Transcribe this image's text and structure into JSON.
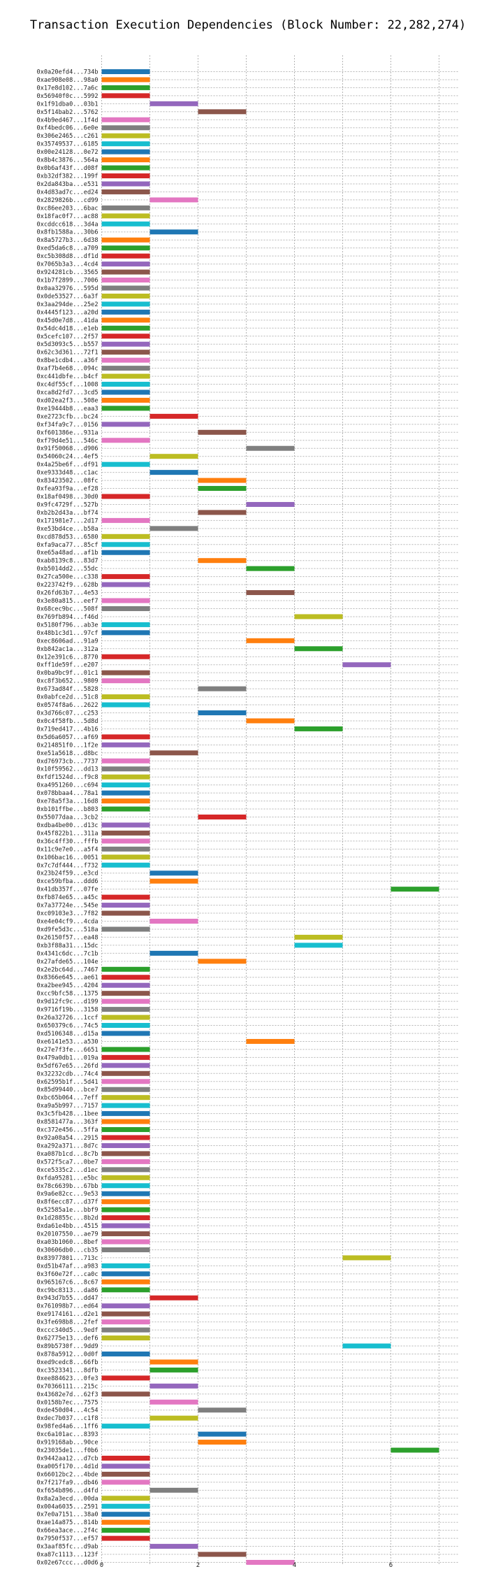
{
  "chart_data": {
    "type": "bar",
    "orientation": "horizontal-gantt",
    "title": "Transaction Execution Dependencies (Block Number: 22,282,274)",
    "xlabel": "",
    "ylabel": "",
    "xlim": [
      0,
      7.4
    ],
    "xticks": [
      0,
      2,
      4,
      6
    ],
    "grid": true,
    "legend": "none",
    "palette": [
      "#1f77b4",
      "#ff7f0e",
      "#2ca02c",
      "#d62728",
      "#9467bd",
      "#8c564b",
      "#e377c2",
      "#7f7f7f",
      "#bcbd22",
      "#17becf"
    ],
    "transactions": [
      {
        "tx": "0x0a20efd4...734b",
        "start": 0
      },
      {
        "tx": "0xae908e08...98a0",
        "start": 0
      },
      {
        "tx": "0x17e8d102...7a6c",
        "start": 0
      },
      {
        "tx": "0x56940f0c...5992",
        "start": 0
      },
      {
        "tx": "0x1f91dba0...03b1",
        "start": 1
      },
      {
        "tx": "0x5f14bab2...5762",
        "start": 2
      },
      {
        "tx": "0x4b9ed467...1f4d",
        "start": 0
      },
      {
        "tx": "0xf4bedc06...6e0e",
        "start": 0
      },
      {
        "tx": "0x306e2465...c261",
        "start": 0
      },
      {
        "tx": "0x35749537...6185",
        "start": 0
      },
      {
        "tx": "0x00e24128...0e72",
        "start": 0
      },
      {
        "tx": "0x8b4c3876...564a",
        "start": 0
      },
      {
        "tx": "0x0b6af43f...d08f",
        "start": 0
      },
      {
        "tx": "0xb32df382...199f",
        "start": 0
      },
      {
        "tx": "0x2da843ba...e531",
        "start": 0
      },
      {
        "tx": "0x4d83ad7c...ed24",
        "start": 0
      },
      {
        "tx": "0x2829826b...cd99",
        "start": 1
      },
      {
        "tx": "0xc86ee203...6bac",
        "start": 0
      },
      {
        "tx": "0x18fac0f7...ac88",
        "start": 0
      },
      {
        "tx": "0xcddcc618...3d4a",
        "start": 0
      },
      {
        "tx": "0x8fb1588a...30b6",
        "start": 1
      },
      {
        "tx": "0x8a5727b3...6d38",
        "start": 0
      },
      {
        "tx": "0xed5da6c8...a709",
        "start": 0
      },
      {
        "tx": "0xc5b308d8...df1d",
        "start": 0
      },
      {
        "tx": "0x7065b3a3...4cd4",
        "start": 0
      },
      {
        "tx": "0x924281cb...3565",
        "start": 0
      },
      {
        "tx": "0x1b7f2899...7006",
        "start": 0
      },
      {
        "tx": "0x0aa32976...595d",
        "start": 0
      },
      {
        "tx": "0x0de53527...6a3f",
        "start": 0
      },
      {
        "tx": "0x3aa294de...25e2",
        "start": 0
      },
      {
        "tx": "0x4445f123...a20d",
        "start": 0
      },
      {
        "tx": "0x45d0e7d8...41da",
        "start": 0
      },
      {
        "tx": "0x54dc4d18...e1eb",
        "start": 0
      },
      {
        "tx": "0x5cefc107...2f57",
        "start": 0
      },
      {
        "tx": "0x5d3093c5...b557",
        "start": 0
      },
      {
        "tx": "0x62c3d361...72f1",
        "start": 0
      },
      {
        "tx": "0x8be1cdb4...a36f",
        "start": 0
      },
      {
        "tx": "0xaf7b4e68...094c",
        "start": 0
      },
      {
        "tx": "0xc441dbfe...b4cf",
        "start": 0
      },
      {
        "tx": "0xc4df55cf...1008",
        "start": 0
      },
      {
        "tx": "0xca8d2fd7...3cd5",
        "start": 0
      },
      {
        "tx": "0xd02ea2f3...508e",
        "start": 0
      },
      {
        "tx": "0xe19444b8...eaa3",
        "start": 0
      },
      {
        "tx": "0xe2723cfb...bc24",
        "start": 1
      },
      {
        "tx": "0xf34fa9c7...0156",
        "start": 0
      },
      {
        "tx": "0xf601386e...931a",
        "start": 2
      },
      {
        "tx": "0xf79d4e51...546c",
        "start": 0
      },
      {
        "tx": "0x91f50068...d906",
        "start": 3
      },
      {
        "tx": "0x54060c24...4ef5",
        "start": 1
      },
      {
        "tx": "0x4a25be6f...df91",
        "start": 0
      },
      {
        "tx": "0xe9333d48...c1ac",
        "start": 1
      },
      {
        "tx": "0x83423502...08fc",
        "start": 2
      },
      {
        "tx": "0xfea93f9a...ef28",
        "start": 2
      },
      {
        "tx": "0x18af0498...30d0",
        "start": 0
      },
      {
        "tx": "0x9fc4729f...527b",
        "start": 3
      },
      {
        "tx": "0xb2b2d43a...bf74",
        "start": 2
      },
      {
        "tx": "0x171981e7...2d17",
        "start": 0
      },
      {
        "tx": "0xe53bd4ce...b58a",
        "start": 1
      },
      {
        "tx": "0xcd878d53...6580",
        "start": 0
      },
      {
        "tx": "0xfa9aca77...85cf",
        "start": 0
      },
      {
        "tx": "0xe65a48ad...af1b",
        "start": 0
      },
      {
        "tx": "0xab8139c8...83d7",
        "start": 2
      },
      {
        "tx": "0xb5014dd2...55dc",
        "start": 3
      },
      {
        "tx": "0x27ca500e...c338",
        "start": 0
      },
      {
        "tx": "0x223742f9...628b",
        "start": 0
      },
      {
        "tx": "0x26fd63b7...4e53",
        "start": 3
      },
      {
        "tx": "0x3e80a815...eef7",
        "start": 0
      },
      {
        "tx": "0x68cec9bc...508f",
        "start": 0
      },
      {
        "tx": "0x769fb894...f46d",
        "start": 4
      },
      {
        "tx": "0x5180f796...ab3e",
        "start": 0
      },
      {
        "tx": "0x48b1c3d1...97cf",
        "start": 0
      },
      {
        "tx": "0xec8606ad...91a9",
        "start": 3
      },
      {
        "tx": "0xb842ac1a...312a",
        "start": 4
      },
      {
        "tx": "0x12e391c6...8770",
        "start": 0
      },
      {
        "tx": "0xff1de59f...e207",
        "start": 5
      },
      {
        "tx": "0x0ba9bc9f...01c1",
        "start": 0
      },
      {
        "tx": "0xc8f3b652...9809",
        "start": 0
      },
      {
        "tx": "0x673ad84f...5828",
        "start": 2
      },
      {
        "tx": "0x0abfce2d...51c8",
        "start": 0
      },
      {
        "tx": "0x0574f8a6...2622",
        "start": 0
      },
      {
        "tx": "0x3d766c07...c253",
        "start": 2
      },
      {
        "tx": "0x0c4f58fb...5d8d",
        "start": 3
      },
      {
        "tx": "0x719ed417...4b16",
        "start": 4
      },
      {
        "tx": "0x5d6a6057...af69",
        "start": 0
      },
      {
        "tx": "0x214851f0...1f2e",
        "start": 0
      },
      {
        "tx": "0xe51a5618...d8bc",
        "start": 1
      },
      {
        "tx": "0xd76973cb...7737",
        "start": 0
      },
      {
        "tx": "0x10f59562...dd13",
        "start": 0
      },
      {
        "tx": "0xfdf1524d...f9c8",
        "start": 0
      },
      {
        "tx": "0xa4951260...c694",
        "start": 0
      },
      {
        "tx": "0x078bbaa4...78a1",
        "start": 0
      },
      {
        "tx": "0xe78a5f3a...16d8",
        "start": 0
      },
      {
        "tx": "0xb101ffbe...b803",
        "start": 0
      },
      {
        "tx": "0x55077daa...3cb2",
        "start": 2
      },
      {
        "tx": "0xdba4be00...d13c",
        "start": 0
      },
      {
        "tx": "0x45f822b1...311a",
        "start": 0
      },
      {
        "tx": "0x36c4ff30...fffb",
        "start": 0
      },
      {
        "tx": "0x11c9e7e0...a5f4",
        "start": 0
      },
      {
        "tx": "0x106bac16...0051",
        "start": 0
      },
      {
        "tx": "0x7c7df444...f732",
        "start": 0
      },
      {
        "tx": "0x23b24f59...e3cd",
        "start": 1
      },
      {
        "tx": "0xce59bfba...ddd6",
        "start": 1
      },
      {
        "tx": "0x41db357f...07fe",
        "start": 6
      },
      {
        "tx": "0xfb874e65...a45c",
        "start": 0
      },
      {
        "tx": "0x7a37724e...545e",
        "start": 0
      },
      {
        "tx": "0xc09103e3...7f82",
        "start": 0
      },
      {
        "tx": "0xe4e04cf9...4cda",
        "start": 1
      },
      {
        "tx": "0xd9fe5d3c...518a",
        "start": 0
      },
      {
        "tx": "0x26150f57...ea48",
        "start": 4
      },
      {
        "tx": "0xb3f88a31...15dc",
        "start": 4
      },
      {
        "tx": "0x4341c6dc...7c1b",
        "start": 1
      },
      {
        "tx": "0x27afde65...104e",
        "start": 2
      },
      {
        "tx": "0x2e2bc64d...7467",
        "start": 0
      },
      {
        "tx": "0x8366e645...ae61",
        "start": 0
      },
      {
        "tx": "0xa2bee945...4204",
        "start": 0
      },
      {
        "tx": "0xcc9bfc58...1375",
        "start": 0
      },
      {
        "tx": "0x9d12fc9c...d199",
        "start": 0
      },
      {
        "tx": "0x9716f19b...3158",
        "start": 0
      },
      {
        "tx": "0x26a32726...1ccf",
        "start": 0
      },
      {
        "tx": "0x650379c6...74c5",
        "start": 0
      },
      {
        "tx": "0xd5106348...d15a",
        "start": 0
      },
      {
        "tx": "0xe6141e53...a530",
        "start": 3
      },
      {
        "tx": "0x27e7f3fe...6651",
        "start": 0
      },
      {
        "tx": "0x479a0db1...019a",
        "start": 0
      },
      {
        "tx": "0x5df67e65...26fd",
        "start": 0
      },
      {
        "tx": "0x32232cdb...74c4",
        "start": 0
      },
      {
        "tx": "0x62595b1f...5d41",
        "start": 0
      },
      {
        "tx": "0x85d99440...bce7",
        "start": 0
      },
      {
        "tx": "0xbc65b064...7eff",
        "start": 0
      },
      {
        "tx": "0xa9a5b997...7157",
        "start": 0
      },
      {
        "tx": "0x3c5fb428...1bee",
        "start": 0
      },
      {
        "tx": "0x8581477a...363f",
        "start": 0
      },
      {
        "tx": "0xc372e456...5ffa",
        "start": 0
      },
      {
        "tx": "0x92a08a54...2915",
        "start": 0
      },
      {
        "tx": "0xa292a371...8d7c",
        "start": 0
      },
      {
        "tx": "0xa087b1cd...8c7b",
        "start": 0
      },
      {
        "tx": "0x572f5ca7...0be7",
        "start": 0
      },
      {
        "tx": "0xce5335c2...d1ec",
        "start": 0
      },
      {
        "tx": "0xfda95281...e5bc",
        "start": 0
      },
      {
        "tx": "0x78c6639b...67bb",
        "start": 0
      },
      {
        "tx": "0x9a6e82cc...9e53",
        "start": 0
      },
      {
        "tx": "0x8f6ecc87...d37f",
        "start": 0
      },
      {
        "tx": "0x52585a1e...bbf9",
        "start": 0
      },
      {
        "tx": "0x1d28855c...8b2d",
        "start": 0
      },
      {
        "tx": "0xda61e4bb...4515",
        "start": 0
      },
      {
        "tx": "0x20107550...ae79",
        "start": 0
      },
      {
        "tx": "0xa03b1060...8bef",
        "start": 0
      },
      {
        "tx": "0x30606db0...cb35",
        "start": 0
      },
      {
        "tx": "0x83977801...713c",
        "start": 5
      },
      {
        "tx": "0xd51b47af...a983",
        "start": 0
      },
      {
        "tx": "0x3f60e72f...ca0c",
        "start": 0
      },
      {
        "tx": "0x965167c6...8c67",
        "start": 0
      },
      {
        "tx": "0xc9bc8313...da86",
        "start": 0
      },
      {
        "tx": "0x943d7b55...dd47",
        "start": 1
      },
      {
        "tx": "0x761098b7...ed64",
        "start": 0
      },
      {
        "tx": "0xe9174161...d2e1",
        "start": 0
      },
      {
        "tx": "0x3fe698b8...2fef",
        "start": 0
      },
      {
        "tx": "0xccc340d5...9edf",
        "start": 0
      },
      {
        "tx": "0x62775e13...def6",
        "start": 0
      },
      {
        "tx": "0x89b5730f...9dd9",
        "start": 5
      },
      {
        "tx": "0x878a5912...0d0f",
        "start": 0
      },
      {
        "tx": "0xed9cedc8...66fb",
        "start": 1
      },
      {
        "tx": "0xc3523341...8dfb",
        "start": 1
      },
      {
        "tx": "0xee884623...0fe3",
        "start": 0
      },
      {
        "tx": "0x70366111...215c",
        "start": 1
      },
      {
        "tx": "0x43682e7d...62f3",
        "start": 0
      },
      {
        "tx": "0x0158b7ec...7575",
        "start": 1
      },
      {
        "tx": "0xde450d04...4c54",
        "start": 2
      },
      {
        "tx": "0xdec7b037...c1f8",
        "start": 1
      },
      {
        "tx": "0x98fed4a6...1ff6",
        "start": 0
      },
      {
        "tx": "0xc6a101ac...8393",
        "start": 2
      },
      {
        "tx": "0x919168ab...90ce",
        "start": 2
      },
      {
        "tx": "0x23035de1...f0b6",
        "start": 6
      },
      {
        "tx": "0x9442aa12...d7cb",
        "start": 0
      },
      {
        "tx": "0xa005f170...4d1d",
        "start": 0
      },
      {
        "tx": "0x66012bc2...4bde",
        "start": 0
      },
      {
        "tx": "0x7f217fa9...db46",
        "start": 0
      },
      {
        "tx": "0xf654b896...d4fd",
        "start": 1
      },
      {
        "tx": "0x8a2a3ecd...00da",
        "start": 0
      },
      {
        "tx": "0x004a6035...2591",
        "start": 0
      },
      {
        "tx": "0x7e0a7151...38a0",
        "start": 0
      },
      {
        "tx": "0xae14a875...814b",
        "start": 0
      },
      {
        "tx": "0x66ea3ace...2f4c",
        "start": 0
      },
      {
        "tx": "0x7950f537...ef57",
        "start": 0
      },
      {
        "tx": "0x3aaf85fc...d9ab",
        "start": 1
      },
      {
        "tx": "0xa87c1113...123f",
        "start": 2
      },
      {
        "tx": "0x02e67ccc...d0d6",
        "start": 3
      }
    ]
  }
}
